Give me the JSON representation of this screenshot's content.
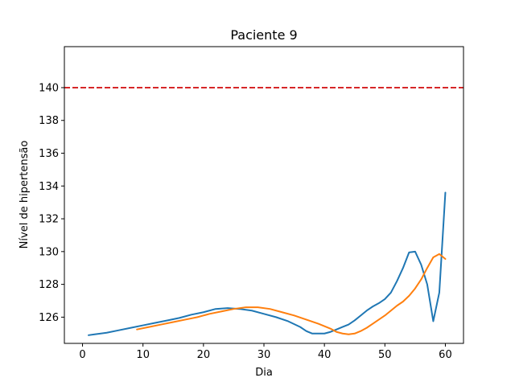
{
  "chart_data": {
    "type": "line",
    "title": "Paciente 9",
    "xlabel": "Dia",
    "ylabel": "Nível de hipertensão",
    "xlim": [
      -3,
      63
    ],
    "ylim": [
      124.4,
      142.5
    ],
    "x_ticks": [
      0,
      10,
      20,
      30,
      40,
      50,
      60
    ],
    "y_ticks": [
      126,
      128,
      130,
      132,
      134,
      136,
      138,
      140
    ],
    "grid": false,
    "threshold": {
      "value": 140,
      "color": "#d62728",
      "style": "dashed"
    },
    "series": [
      {
        "color": "#1f77b4",
        "x": [
          1,
          2,
          4,
          6,
          8,
          10,
          12,
          14,
          16,
          18,
          20,
          22,
          24,
          26,
          28,
          30,
          32,
          34,
          36,
          37,
          38,
          39,
          40,
          41,
          42,
          43,
          44,
          45,
          46,
          47,
          48,
          49,
          50,
          51,
          52,
          53,
          54,
          55,
          56,
          57,
          58,
          59,
          60
        ],
        "y": [
          124.9,
          124.95,
          125.05,
          125.2,
          125.35,
          125.5,
          125.65,
          125.8,
          125.95,
          126.15,
          126.3,
          126.5,
          126.55,
          126.5,
          126.4,
          126.2,
          126.0,
          125.75,
          125.4,
          125.15,
          125.0,
          125.0,
          125.0,
          125.1,
          125.25,
          125.4,
          125.55,
          125.8,
          126.1,
          126.4,
          126.65,
          126.85,
          127.1,
          127.5,
          128.2,
          129.0,
          129.95,
          130.0,
          129.2,
          128.0,
          125.75,
          127.5,
          133.6
        ]
      },
      {
        "color": "#ff7f0e",
        "x": [
          9,
          11,
          13,
          15,
          17,
          19,
          21,
          23,
          25,
          27,
          29,
          31,
          33,
          35,
          37,
          39,
          41,
          42,
          43,
          44,
          45,
          46,
          47,
          48,
          49,
          50,
          51,
          52,
          53,
          54,
          55,
          56,
          57,
          58,
          59,
          60
        ],
        "y": [
          125.25,
          125.4,
          125.55,
          125.7,
          125.85,
          126.0,
          126.2,
          126.35,
          126.5,
          126.6,
          126.6,
          126.5,
          126.3,
          126.1,
          125.85,
          125.6,
          125.3,
          125.1,
          125.0,
          124.95,
          125.0,
          125.15,
          125.35,
          125.6,
          125.85,
          126.1,
          126.4,
          126.7,
          126.95,
          127.3,
          127.75,
          128.3,
          129.0,
          129.65,
          129.85,
          129.55
        ]
      }
    ]
  }
}
